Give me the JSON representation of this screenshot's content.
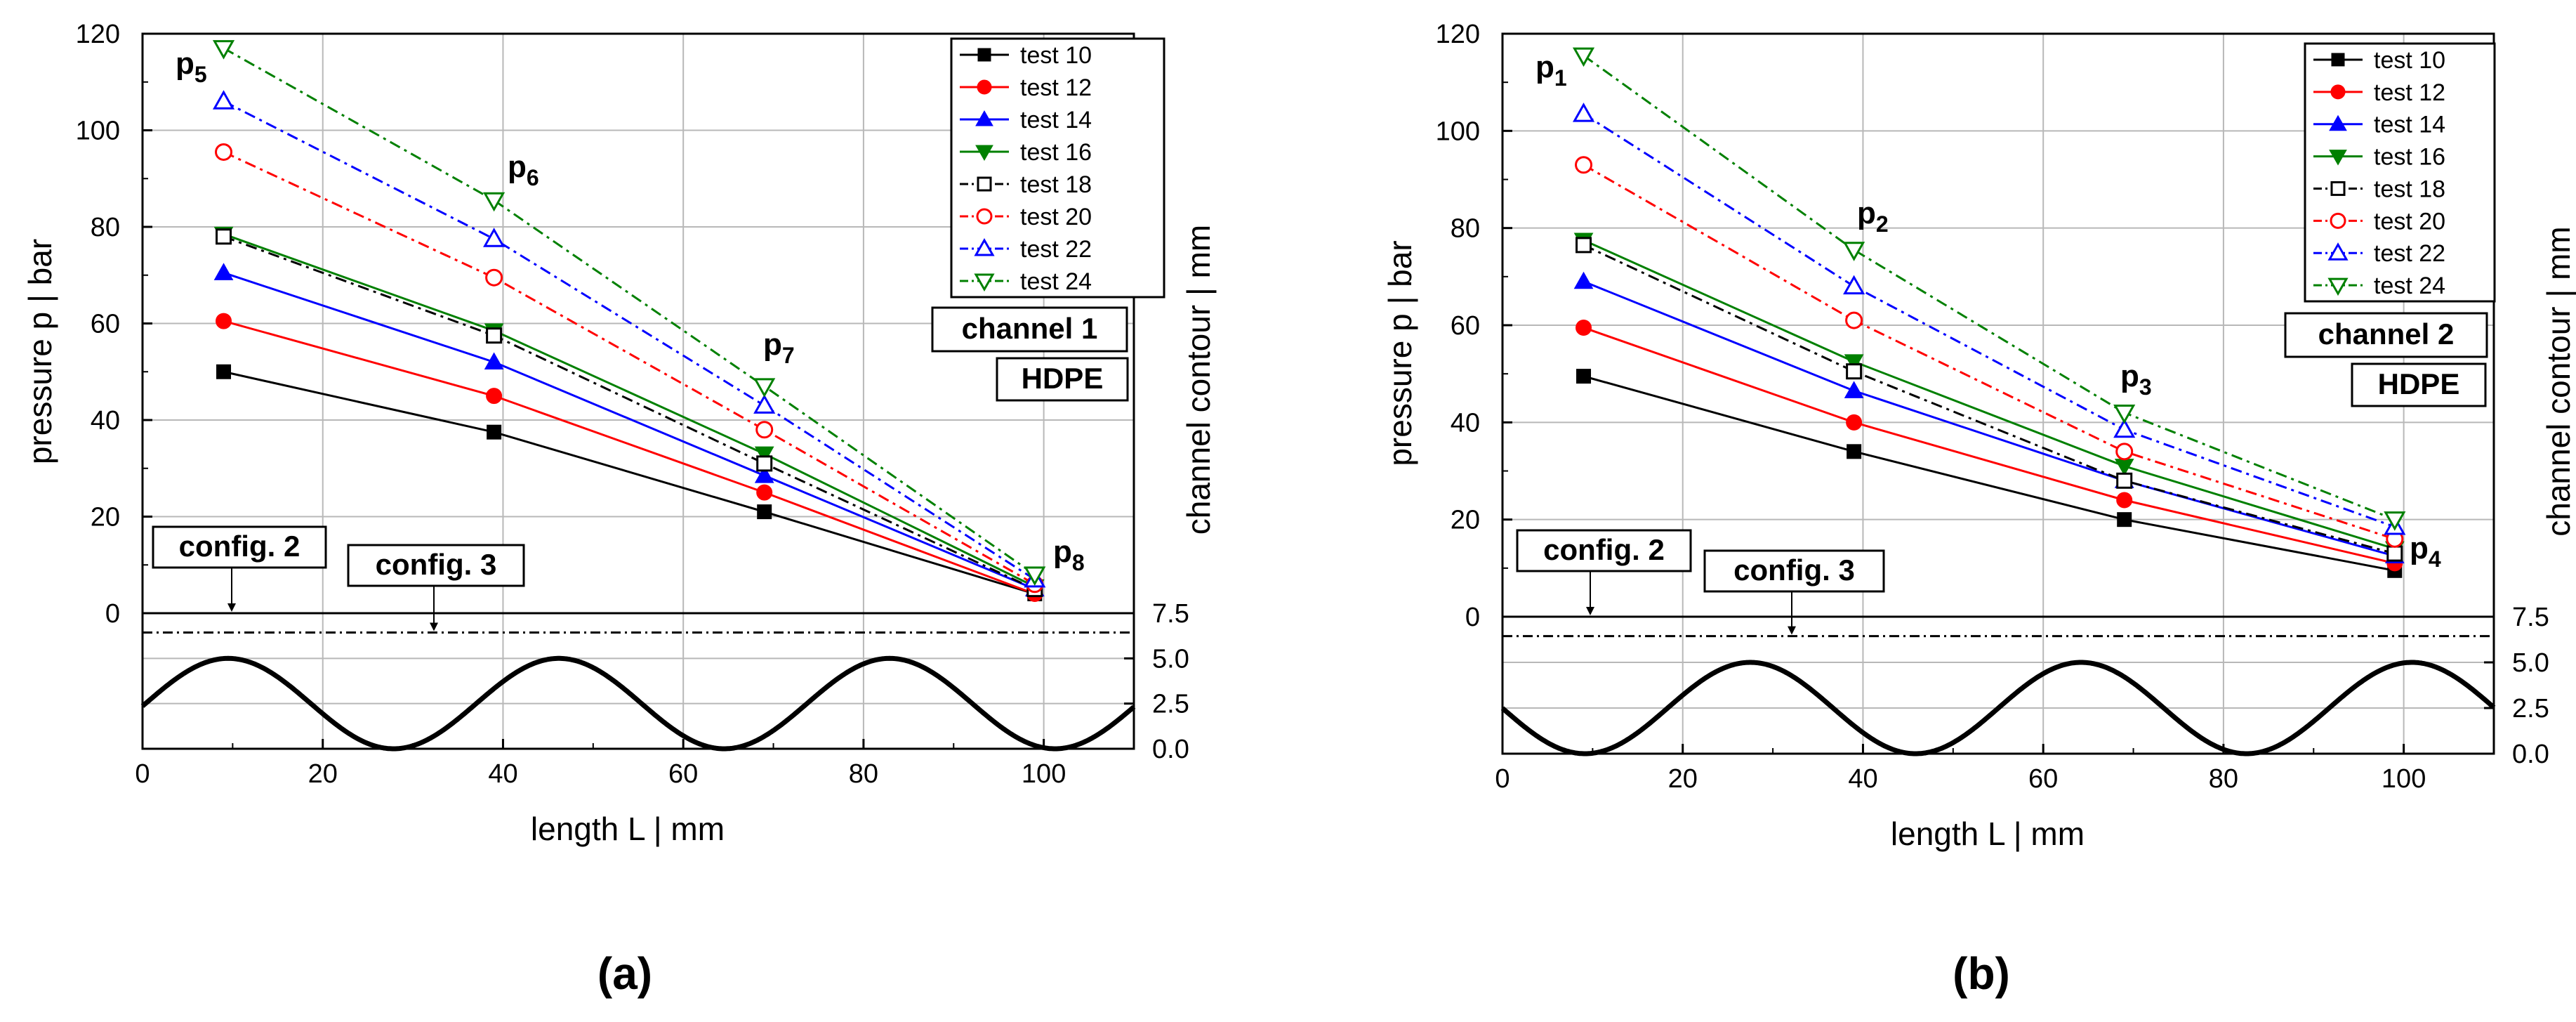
{
  "panels": [
    {
      "caption": "(a)",
      "channel_label": "channel 1",
      "material_label": "HDPE",
      "config_labels": [
        "config. 2",
        "config. 3"
      ],
      "ylabel": "pressure p  |  bar",
      "y2label": "channel contour  |  mm",
      "xlabel": "length L  |  mm"
    },
    {
      "caption": "(b)",
      "channel_label": "channel 2",
      "material_label": "HDPE",
      "config_labels": [
        "config. 2",
        "config. 3"
      ],
      "ylabel": "pressure p  |  bar",
      "y2label": "channel contour  |  mm",
      "xlabel": "length L  |  mm"
    }
  ],
  "chart_data": [
    {
      "type": "line",
      "title": "",
      "xlabel": "length L  |  mm",
      "ylabel": "pressure p  |  bar",
      "y2label": "channel contour  |  mm",
      "xlim": [
        0,
        110
      ],
      "ylim": [
        0,
        120
      ],
      "y2lim": [
        0,
        7.5
      ],
      "xticks": [
        0,
        20,
        40,
        60,
        80,
        100
      ],
      "yticks": [
        0,
        20,
        40,
        60,
        80,
        100,
        120
      ],
      "y2ticks": [
        "0.0",
        "2.5",
        "5.0",
        "7.5"
      ],
      "grid": true,
      "legend_position": "top-right",
      "x": [
        9,
        39,
        69,
        99
      ],
      "point_labels": [
        {
          "text": "p",
          "sub": "5"
        },
        {
          "text": "p",
          "sub": "6"
        },
        {
          "text": "p",
          "sub": "7"
        },
        {
          "text": "p",
          "sub": "8"
        }
      ],
      "series": [
        {
          "name": "test 10",
          "color": "#000000",
          "marker": "square",
          "filled": true,
          "dash": "solid",
          "values": [
            50,
            37.5,
            21,
            4
          ]
        },
        {
          "name": "test 12",
          "color": "#ff0000",
          "marker": "circle",
          "filled": true,
          "dash": "solid",
          "values": [
            60.5,
            45,
            25,
            4
          ]
        },
        {
          "name": "test 14",
          "color": "#0000ff",
          "marker": "triangle-up",
          "filled": true,
          "dash": "solid",
          "values": [
            70.5,
            52,
            28.5,
            5
          ]
        },
        {
          "name": "test 16",
          "color": "#008000",
          "marker": "triangle-down",
          "filled": true,
          "dash": "solid",
          "values": [
            78.5,
            58.5,
            33,
            5.5
          ]
        },
        {
          "name": "test 18",
          "color": "#000000",
          "marker": "square",
          "filled": false,
          "dash": "dashdot",
          "values": [
            78,
            57.5,
            31,
            5
          ]
        },
        {
          "name": "test 20",
          "color": "#ff0000",
          "marker": "circle",
          "filled": false,
          "dash": "dashdot",
          "values": [
            95.5,
            69.5,
            38,
            6
          ]
        },
        {
          "name": "test 22",
          "color": "#0000ff",
          "marker": "triangle-up",
          "filled": false,
          "dash": "dashdot",
          "values": [
            106,
            77.5,
            43,
            7
          ]
        },
        {
          "name": "test 24",
          "color": "#008000",
          "marker": "triangle-down",
          "filled": false,
          "dash": "dashdot",
          "values": [
            117,
            85.5,
            47,
            8
          ]
        }
      ],
      "contour": {
        "period": 36.7,
        "peak_x": 9.5,
        "y_min": 0,
        "y_max": 5.0
      },
      "config_lines": [
        {
          "label": "config. 2",
          "pressure": 0,
          "style": "solid"
        },
        {
          "label": "config. 3",
          "pressure": -4,
          "style": "dashdot"
        }
      ]
    },
    {
      "type": "line",
      "title": "",
      "xlabel": "length L  |  mm",
      "ylabel": "pressure p  |  bar",
      "y2label": "channel contour  |  mm",
      "xlim": [
        0,
        110
      ],
      "ylim": [
        0,
        120
      ],
      "y2lim": [
        0,
        7.5
      ],
      "xticks": [
        0,
        20,
        40,
        60,
        80,
        100
      ],
      "yticks": [
        0,
        20,
        40,
        60,
        80,
        100,
        120
      ],
      "y2ticks": [
        "0.0",
        "2.5",
        "5.0",
        "7.5"
      ],
      "grid": true,
      "legend_position": "top-right",
      "x": [
        9,
        39,
        69,
        99
      ],
      "point_labels": [
        {
          "text": "p",
          "sub": "1"
        },
        {
          "text": "p",
          "sub": "2"
        },
        {
          "text": "p",
          "sub": "3"
        },
        {
          "text": "p",
          "sub": "4"
        }
      ],
      "series": [
        {
          "name": "test 10",
          "color": "#000000",
          "marker": "square",
          "filled": true,
          "dash": "solid",
          "values": [
            49.5,
            34,
            20,
            9.5
          ]
        },
        {
          "name": "test 12",
          "color": "#ff0000",
          "marker": "circle",
          "filled": true,
          "dash": "solid",
          "values": [
            59.5,
            40,
            24,
            11
          ]
        },
        {
          "name": "test 14",
          "color": "#0000ff",
          "marker": "triangle-up",
          "filled": true,
          "dash": "solid",
          "values": [
            69,
            46.5,
            28,
            12.5
          ]
        },
        {
          "name": "test 16",
          "color": "#008000",
          "marker": "triangle-down",
          "filled": true,
          "dash": "solid",
          "values": [
            77.5,
            52.5,
            31,
            14
          ]
        },
        {
          "name": "test 18",
          "color": "#000000",
          "marker": "square",
          "filled": false,
          "dash": "dashdot",
          "values": [
            76.5,
            50.5,
            28,
            13
          ]
        },
        {
          "name": "test 20",
          "color": "#ff0000",
          "marker": "circle",
          "filled": false,
          "dash": "dashdot",
          "values": [
            93,
            61,
            34,
            16
          ]
        },
        {
          "name": "test 22",
          "color": "#0000ff",
          "marker": "triangle-up",
          "filled": false,
          "dash": "dashdot",
          "values": [
            103.5,
            68,
            38.5,
            18.5
          ]
        },
        {
          "name": "test 24",
          "color": "#008000",
          "marker": "triangle-down",
          "filled": false,
          "dash": "dashdot",
          "values": [
            115.5,
            75.5,
            42,
            20
          ]
        }
      ],
      "contour": {
        "period": 36.7,
        "peak_x": 27.5,
        "y_min": 0,
        "y_max": 5.0
      },
      "config_lines": [
        {
          "label": "config. 2",
          "pressure": 0,
          "style": "solid"
        },
        {
          "label": "config. 3",
          "pressure": -4,
          "style": "dashdot"
        }
      ]
    }
  ]
}
